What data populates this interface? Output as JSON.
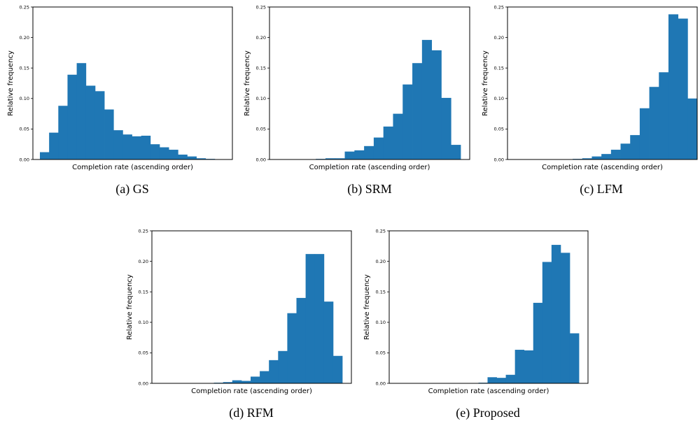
{
  "chart_data": [
    {
      "type": "bar",
      "caption": "(a) GS",
      "xlabel": "Completion rate (ascending order)",
      "ylabel": "Relative frequency",
      "ylim": [
        0,
        0.25
      ],
      "yticks": [
        "0.00",
        "0.05",
        "0.10",
        "0.15",
        "0.20",
        "0.25"
      ],
      "color": "#1f77b4",
      "values": [
        0.012,
        0.044,
        0.088,
        0.139,
        0.158,
        0.121,
        0.112,
        0.082,
        0.048,
        0.041,
        0.038,
        0.039,
        0.025,
        0.02,
        0.016,
        0.008,
        0.005,
        0.002,
        0.001,
        0.0
      ]
    },
    {
      "type": "bar",
      "caption": "(b) SRM",
      "xlabel": "Completion rate (ascending order)",
      "ylabel": "Relative frequency",
      "ylim": [
        0,
        0.25
      ],
      "yticks": [
        "0.00",
        "0.05",
        "0.10",
        "0.15",
        "0.20",
        "0.25"
      ],
      "color": "#1f77b4",
      "values": [
        0.0,
        0.0,
        0.0,
        0.0,
        0.001,
        0.002,
        0.002,
        0.013,
        0.015,
        0.022,
        0.036,
        0.054,
        0.075,
        0.123,
        0.158,
        0.196,
        0.179,
        0.101,
        0.024
      ]
    },
    {
      "type": "bar",
      "caption": "(c) LFM",
      "xlabel": "Completion rate (ascending order)",
      "ylabel": "Relative frequency",
      "ylim": [
        0,
        0.25
      ],
      "yticks": [
        "0.00",
        "0.05",
        "0.10",
        "0.15",
        "0.20",
        "0.25"
      ],
      "color": "#1f77b4",
      "values": [
        0.0,
        0.0,
        0.0,
        0.0,
        0.0,
        0.0,
        0.001,
        0.002,
        0.005,
        0.009,
        0.016,
        0.026,
        0.04,
        0.084,
        0.119,
        0.143,
        0.238,
        0.231,
        0.1
      ]
    },
    {
      "type": "bar",
      "caption": "(d) RFM",
      "xlabel": "Completion rate (ascending order)",
      "ylabel": "Relative frequency",
      "ylim": [
        0,
        0.25
      ],
      "yticks": [
        "0.00",
        "0.05",
        "0.10",
        "0.15",
        "0.20",
        "0.25"
      ],
      "color": "#1f77b4",
      "values": [
        0.0,
        0.0,
        0.0,
        0.0,
        0.0,
        0.0,
        0.001,
        0.002,
        0.005,
        0.004,
        0.011,
        0.02,
        0.038,
        0.053,
        0.115,
        0.14,
        0.212,
        0.212,
        0.134,
        0.045
      ]
    },
    {
      "type": "bar",
      "caption": "(e) Proposed",
      "xlabel": "Completion rate (ascending order)",
      "ylabel": "Relative frequency",
      "ylim": [
        0,
        0.25
      ],
      "yticks": [
        "0.00",
        "0.05",
        "0.10",
        "0.15",
        "0.20",
        "0.25"
      ],
      "color": "#1f77b4",
      "values": [
        0.0,
        0.0,
        0.0,
        0.0,
        0.0,
        0.0,
        0.0,
        0.0,
        0.0,
        0.001,
        0.01,
        0.009,
        0.014,
        0.055,
        0.054,
        0.132,
        0.199,
        0.227,
        0.214,
        0.082
      ]
    }
  ]
}
